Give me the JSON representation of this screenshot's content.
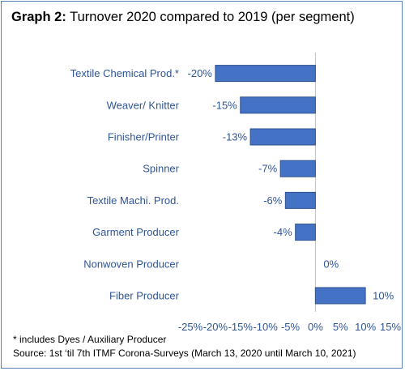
{
  "title_prefix": "Graph 2:",
  "title_rest": " Turnover 2020 compared to 2019 (per segment)",
  "footnote": "* includes Dyes / Auxiliary Producer",
  "source": "Source: 1st ‘til 7th ITMF Corona-Surveys (March 13, 2020 until March 10, 2021)",
  "colors": {
    "bar": "#4472c4",
    "bar_edge": "#2f528f",
    "text": "#2f5597",
    "frame": "#5b7fb7"
  },
  "chart_data": {
    "type": "bar",
    "orientation": "horizontal",
    "title": "Turnover 2020 compared to 2019 (per segment)",
    "categories": [
      "Textile Chemical Prod.*",
      "Weaver/ Knitter",
      "Finisher/Printer",
      "Spinner",
      "Textile Machi. Prod.",
      "Garment Producer",
      "Nonwoven Producer",
      "Fiber Producer"
    ],
    "values": [
      -20,
      -15,
      -13,
      -7,
      -6,
      -4,
      0,
      10
    ],
    "value_labels": [
      "-20%",
      "-15%",
      "-13%",
      "-7%",
      "-6%",
      "-4%",
      "0%",
      "10%"
    ],
    "xlim": [
      -25,
      15
    ],
    "xticks": [
      -25,
      -20,
      -15,
      -10,
      -5,
      0,
      5,
      10,
      15
    ],
    "xtick_labels": [
      "-25%",
      "-20%",
      "-15%",
      "-10%",
      "-5%",
      "0%",
      "5%",
      "10%",
      "15%"
    ],
    "grid": false,
    "legend": "none"
  }
}
